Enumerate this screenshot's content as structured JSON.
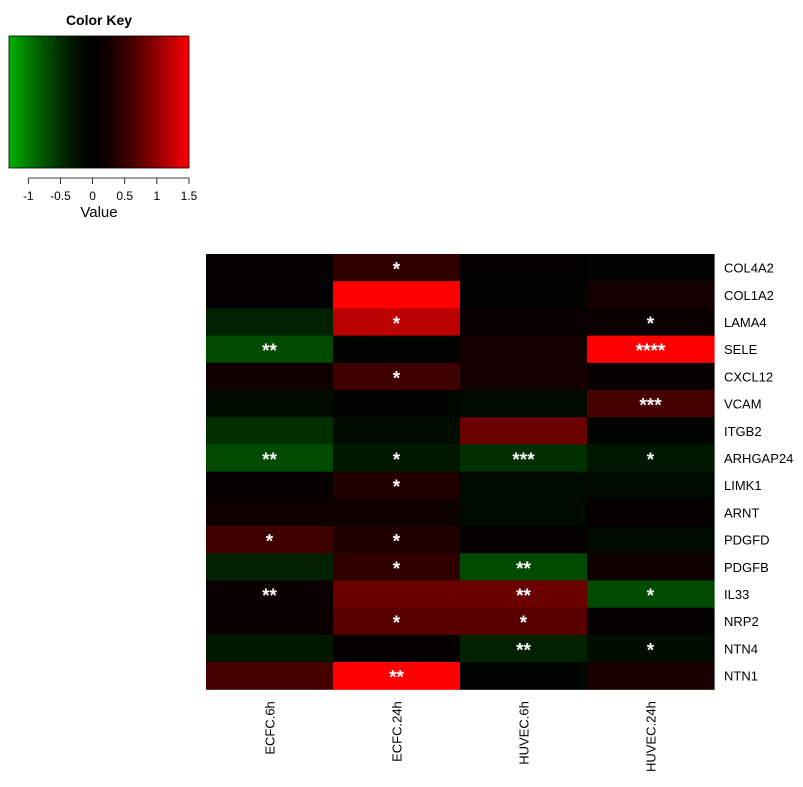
{
  "chart_data": {
    "type": "heatmap",
    "color_key": {
      "title": "Color Key",
      "xlabel": "Value",
      "range": [
        -1.3,
        1.5
      ],
      "ticks": [
        "-1",
        "-0.5",
        "0",
        "0.5",
        "1",
        "1.5"
      ],
      "tick_values": [
        -1,
        -0.5,
        0,
        0.5,
        1,
        1.5
      ],
      "low_color": "#00b300",
      "mid_color": "#000000",
      "high_color": "#ff0000"
    },
    "columns": [
      "ECFC.6h",
      "ECFC.24h",
      "HUVEC.6h",
      "HUVEC.24h"
    ],
    "rows": [
      {
        "label": "COL4A2",
        "values": [
          0.1,
          0.45,
          0.05,
          -0.1
        ],
        "stars": [
          "",
          "*",
          "",
          ""
        ]
      },
      {
        "label": "COL1A2",
        "values": [
          0.05,
          1.5,
          -0.1,
          0.25
        ],
        "stars": [
          "",
          "",
          "",
          ""
        ]
      },
      {
        "label": "LAMA4",
        "values": [
          -0.4,
          1.2,
          0.15,
          0.15
        ],
        "stars": [
          "",
          "*",
          "",
          "*"
        ]
      },
      {
        "label": "SELE",
        "values": [
          -0.7,
          -0.05,
          0.25,
          1.5
        ],
        "stars": [
          "**",
          "",
          "",
          "****"
        ]
      },
      {
        "label": "CXCL12",
        "values": [
          0.2,
          0.55,
          0.25,
          0.1
        ],
        "stars": [
          "",
          "*",
          "",
          ""
        ]
      },
      {
        "label": "VCAM",
        "values": [
          -0.2,
          -0.1,
          -0.15,
          0.6
        ],
        "stars": [
          "",
          "",
          "",
          "***"
        ]
      },
      {
        "label": "ITGB2",
        "values": [
          -0.5,
          -0.2,
          0.8,
          -0.1
        ],
        "stars": [
          "",
          "",
          "",
          ""
        ]
      },
      {
        "label": "ARHGAP24",
        "values": [
          -0.7,
          -0.3,
          -0.5,
          -0.3
        ],
        "stars": [
          "**",
          "*",
          "***",
          "*"
        ]
      },
      {
        "label": "LIMK1",
        "values": [
          0.1,
          0.35,
          -0.15,
          -0.15
        ],
        "stars": [
          "",
          "*",
          "",
          ""
        ]
      },
      {
        "label": "ARNT",
        "values": [
          0.2,
          0.2,
          -0.15,
          0.1
        ],
        "stars": [
          "",
          "",
          "",
          ""
        ]
      },
      {
        "label": "PDGFD",
        "values": [
          0.55,
          0.35,
          0.05,
          -0.15
        ],
        "stars": [
          "*",
          "*",
          "",
          ""
        ]
      },
      {
        "label": "PDGFB",
        "values": [
          -0.4,
          0.45,
          -0.7,
          0.2
        ],
        "stars": [
          "",
          "*",
          "**",
          ""
        ]
      },
      {
        "label": "IL33",
        "values": [
          0.15,
          0.8,
          0.8,
          -0.7
        ],
        "stars": [
          "**",
          "",
          "**",
          "*"
        ]
      },
      {
        "label": "NRP2",
        "values": [
          0.15,
          0.7,
          0.7,
          0.05
        ],
        "stars": [
          "",
          "*",
          "*",
          ""
        ]
      },
      {
        "label": "NTN4",
        "values": [
          -0.3,
          0.1,
          -0.4,
          -0.2
        ],
        "stars": [
          "",
          "",
          "**",
          "*"
        ]
      },
      {
        "label": "NTN1",
        "values": [
          0.6,
          1.5,
          -0.1,
          0.3
        ],
        "stars": [
          "",
          "**",
          "",
          ""
        ]
      }
    ]
  }
}
